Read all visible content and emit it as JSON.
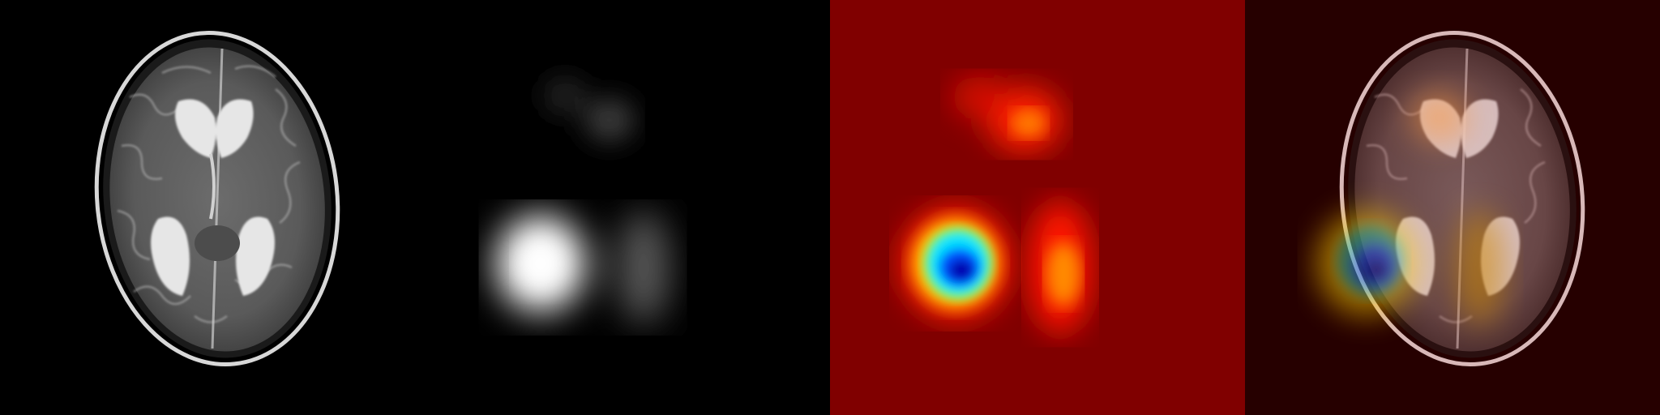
{
  "figure": {
    "panels": [
      {
        "id": "mri-slice",
        "kind": "axial T2 brain MRI slice",
        "colormap": "grayscale"
      },
      {
        "id": "saliency-map",
        "kind": "grayscale attention map",
        "colormap": "grayscale"
      },
      {
        "id": "heatmap",
        "kind": "jet colormap attention map",
        "colormap": "jet"
      },
      {
        "id": "overlay",
        "kind": "heatmap overlaid on MRI",
        "colormap": "jet-blend"
      }
    ],
    "colors": {
      "background": "#000000",
      "jet_low": "#7f0000",
      "jet_mid_red": "#ff1a00",
      "jet_orange": "#ff9a00",
      "jet_cyan": "#00e0ff",
      "jet_blue": "#0000b0"
    }
  }
}
